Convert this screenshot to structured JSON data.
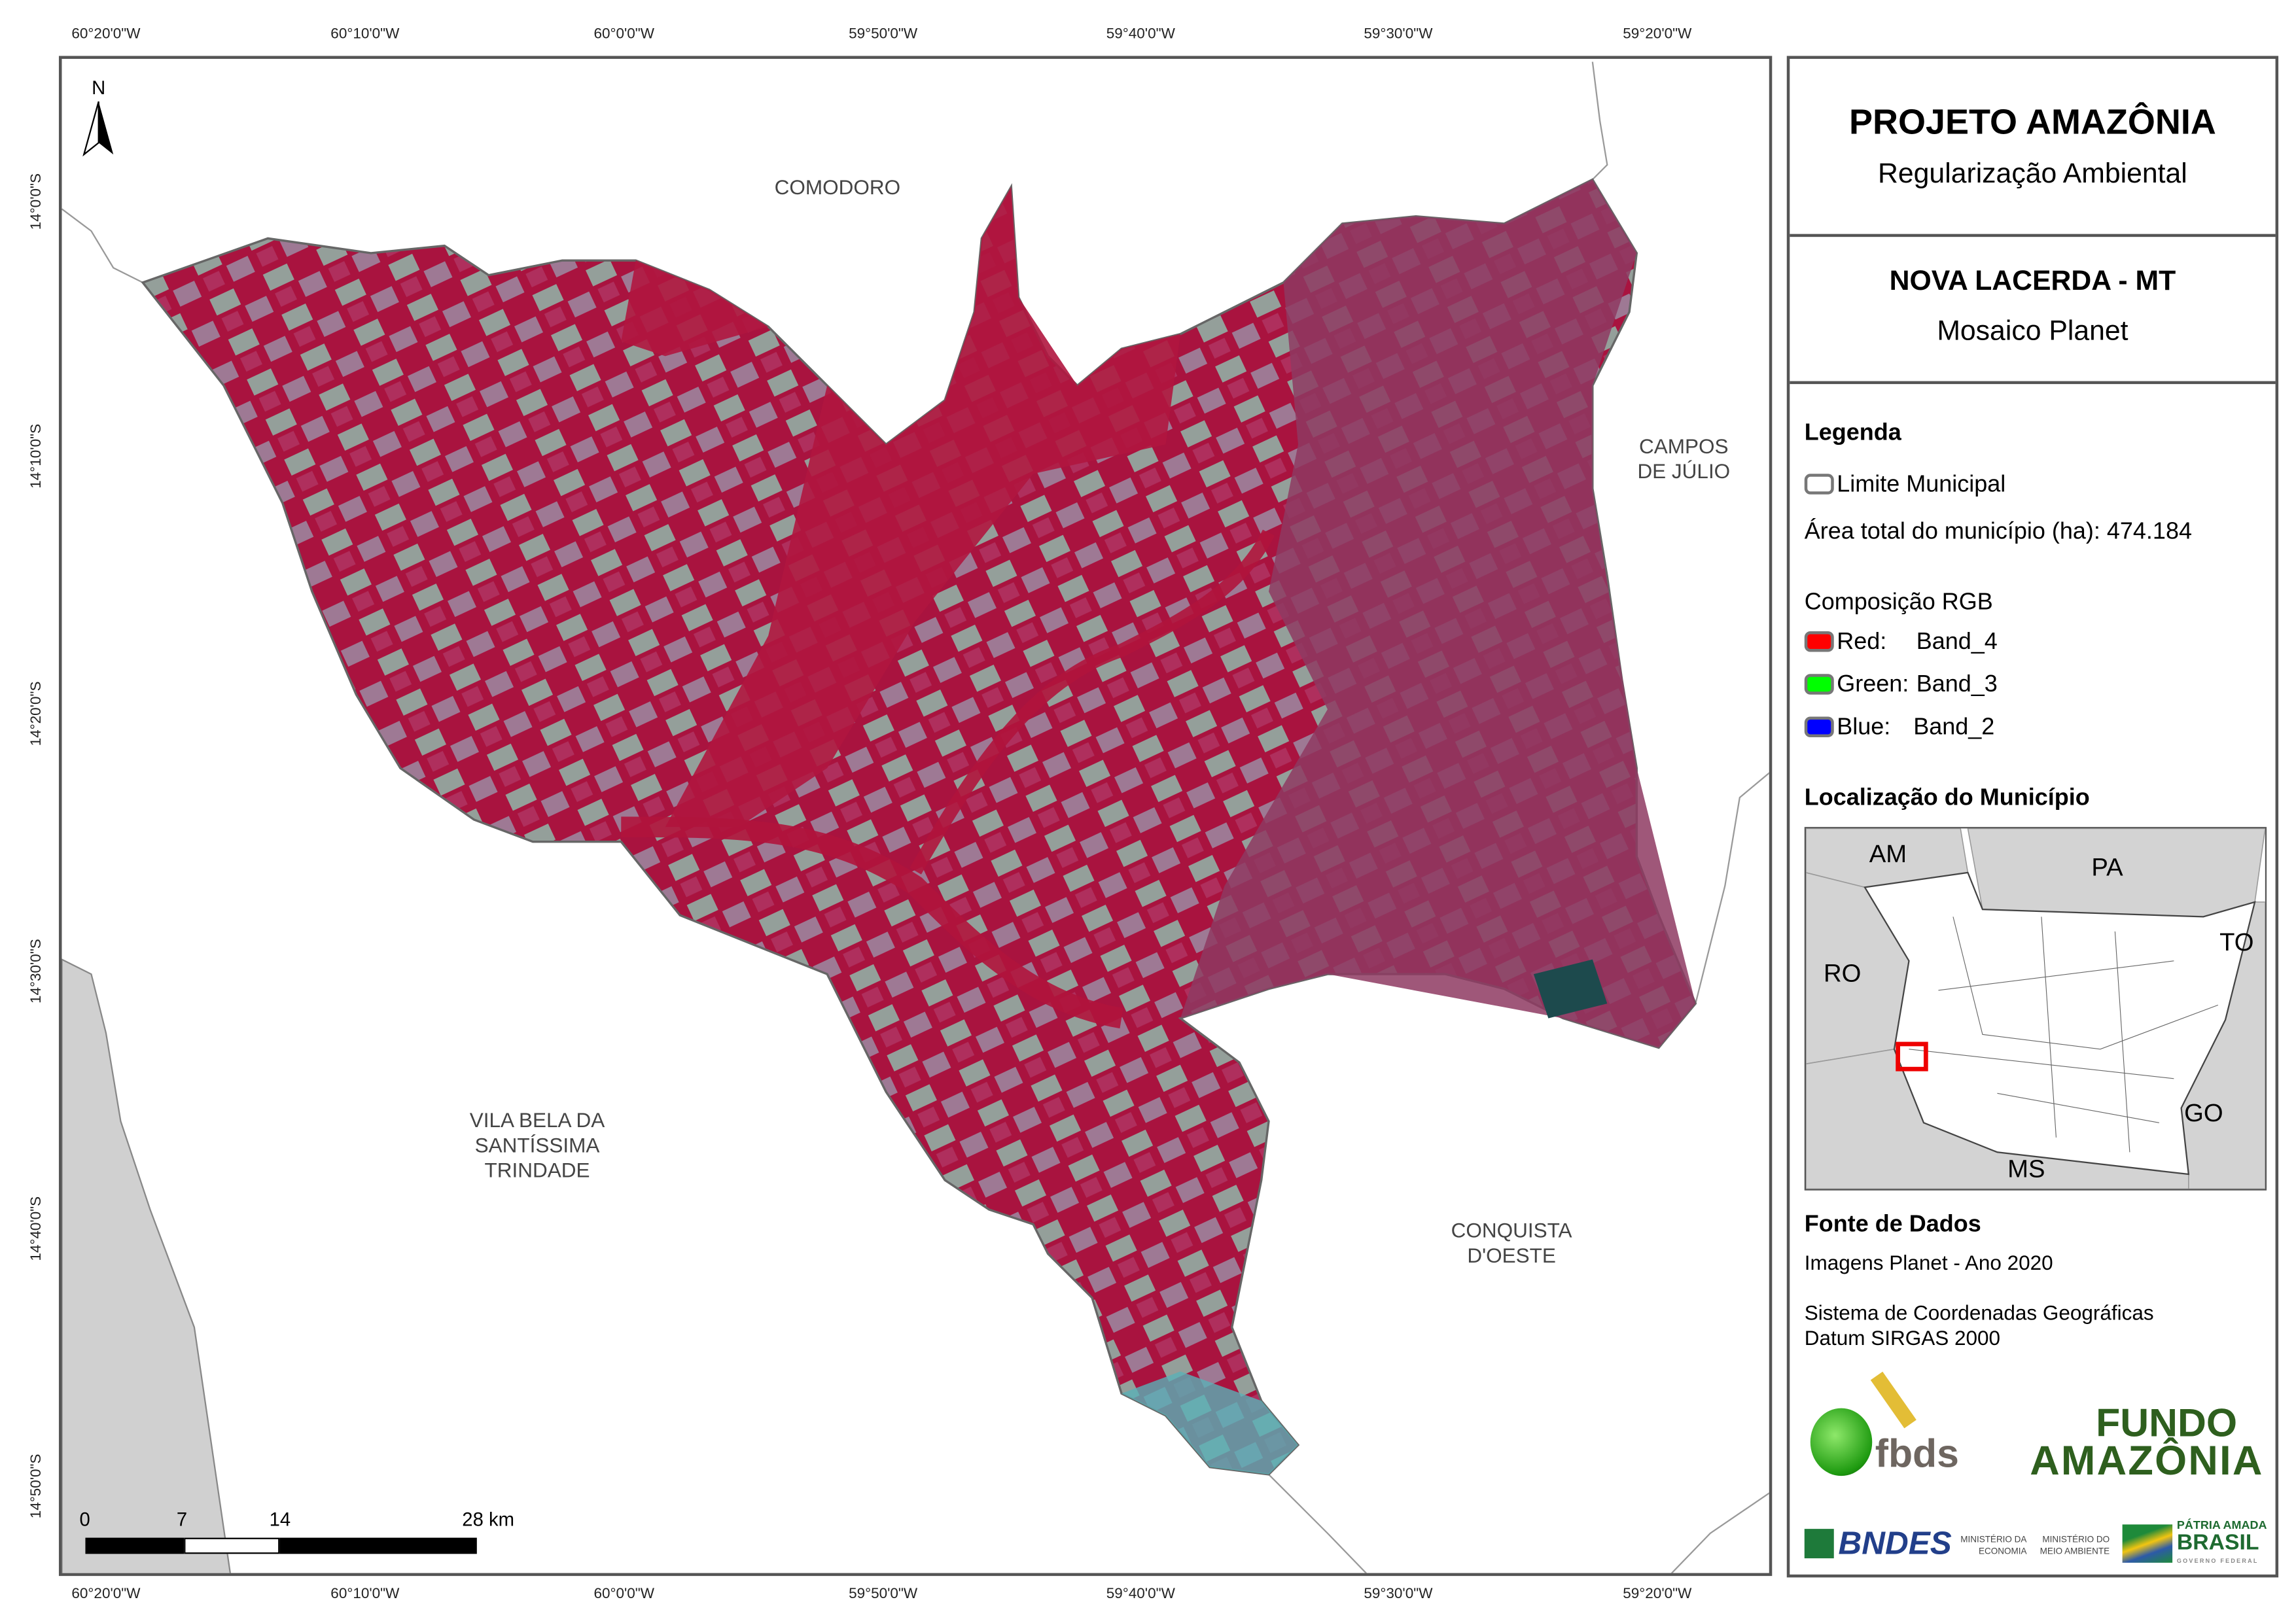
{
  "grid": {
    "longitudes": [
      "60°20'0\"W",
      "60°10'0\"W",
      "60°0'0\"W",
      "59°50'0\"W",
      "59°40'0\"W",
      "59°30'0\"W",
      "59°20'0\"W"
    ],
    "latitudes": [
      "14°0'0\"S",
      "14°10'0\"S",
      "14°20'0\"S",
      "14°30'0\"S",
      "14°40'0\"S",
      "14°50'0\"S"
    ]
  },
  "map": {
    "north_label": "N",
    "neighbors": {
      "comodoro": "COMODORO",
      "campos_1": "CAMPOS",
      "campos_2": "DE JÚLIO",
      "vila_1": "VILA BELA DA",
      "vila_2": "SANTÍSSIMA",
      "vila_3": "TRINDADE",
      "conquista_1": "CONQUISTA",
      "conquista_2": "D'OESTE"
    },
    "scale_bar": {
      "labels": [
        "0",
        "7",
        "14",
        "28 km"
      ]
    }
  },
  "panel": {
    "title": "PROJETO AMAZÔNIA",
    "subtitle": "Regularização Ambiental",
    "municipality": "NOVA LACERDA - MT",
    "mosaic": "Mosaico Planet",
    "legend_title": "Legenda",
    "limit_label": "Limite Municipal",
    "area_label": "Área total do município (ha): 474.184",
    "rgb_title": "Composição RGB",
    "bands": [
      {
        "label": "Red:",
        "band": "Band_4",
        "color": "#ff0000"
      },
      {
        "label": "Green:",
        "band": "Band_3",
        "color": "#00ff00"
      },
      {
        "label": "Blue:",
        "band": "Band_2",
        "color": "#0000ff"
      }
    ],
    "location_title": "Localização do Município",
    "states": {
      "am": "AM",
      "pa": "PA",
      "ro": "RO",
      "to": "TO",
      "go": "GO",
      "ms": "MS"
    },
    "sources_title": "Fonte de Dados",
    "source_1": "Imagens Planet - Ano 2020",
    "source_2": "Sistema de Coordenadas Geográficas",
    "source_3": "Datum SIRGAS 2000",
    "logos": {
      "fbds": "fbds",
      "fundo_1": "FUNDO",
      "fundo_2": "AMAZÔNIA",
      "bndes": "BNDES",
      "min_eco_1": "MINISTÉRIO DA",
      "min_eco_2": "ECONOMIA",
      "min_amb_1": "MINISTÉRIO DO",
      "min_amb_2": "MEIO AMBIENTE",
      "brasil_1": "PÁTRIA AMADA",
      "brasil_2": "BRASIL",
      "brasil_3": "GOVERNO FEDERAL"
    }
  }
}
